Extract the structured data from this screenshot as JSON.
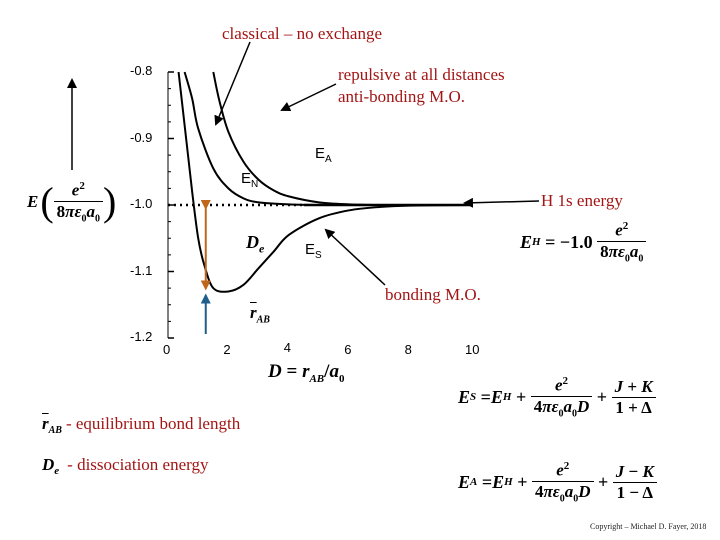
{
  "annotations": {
    "classical": "classical – no exchange",
    "repulsive_line1": "repulsive at all distances",
    "repulsive_line2": "anti-bonding M.O.",
    "h1s": "H 1s energy",
    "bonding": "bonding M.O.",
    "EA": "E",
    "EA_sub": "A",
    "EN": "E",
    "EN_sub": "N",
    "ES": "E",
    "ES_sub": "S",
    "De": "D",
    "De_sub": "e",
    "rAB": "r",
    "rAB_sub": "AB"
  },
  "legend_text": {
    "rab_desc": "- equilibrium bond length",
    "de_desc": "- dissociation energy",
    "de_symbol": "D",
    "de_symbol_sub": "e"
  },
  "copyright": "Copyright – Michael D. Fayer, 2018",
  "chart_data": {
    "type": "line",
    "x_ticks": [
      "0",
      "2",
      "4",
      "6",
      "8",
      "10"
    ],
    "y_ticks": [
      "-0.8",
      "-0.9",
      "-1.0",
      "-1.1",
      "-1.2"
    ],
    "xlim": [
      0,
      10
    ],
    "ylim": [
      -1.2,
      -0.8
    ],
    "h1s_energy": -1.0,
    "series": [
      {
        "name": "E_A",
        "x": [
          1.5,
          1.7,
          2.0,
          2.5,
          3.0,
          3.5,
          4.0,
          5.0,
          6.0,
          7.0,
          8.0,
          10.0
        ],
        "y": [
          -0.8,
          -0.843,
          -0.89,
          -0.935,
          -0.962,
          -0.978,
          -0.987,
          -0.996,
          -0.999,
          -1.0,
          -1.0,
          -1.0
        ]
      },
      {
        "name": "E_N",
        "x": [
          0.55,
          0.8,
          1.0,
          1.5,
          2.0,
          2.5,
          3.0,
          4.0,
          5.0,
          6.0,
          7.0,
          10.0
        ],
        "y": [
          -0.8,
          -0.84,
          -0.885,
          -0.945,
          -0.975,
          -0.99,
          -0.996,
          -0.999,
          -1.0,
          -1.0,
          -1.0,
          -1.0
        ]
      },
      {
        "name": "E_S",
        "x": [
          0.35,
          0.6,
          0.8,
          1.0,
          1.2,
          1.5,
          2.0,
          2.5,
          3.0,
          3.5,
          4.0,
          5.0,
          6.0,
          7.0,
          8.0,
          10.0
        ],
        "y": [
          -0.8,
          -0.9,
          -0.98,
          -1.05,
          -1.09,
          -1.125,
          -1.13,
          -1.12,
          -1.095,
          -1.07,
          -1.045,
          -1.02,
          -1.008,
          -1.003,
          -1.001,
          -1.0
        ]
      }
    ]
  }
}
